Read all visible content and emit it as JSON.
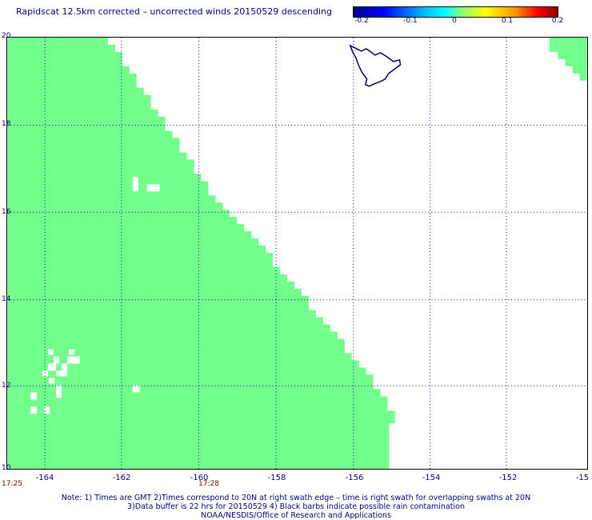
{
  "title": "Rapidscat 12.5km corrected – uncorrected winds 20150529 descending",
  "colorbar": {
    "labels": [
      "-0.2",
      "-0.1",
      "0",
      "0.1",
      "0.2"
    ]
  },
  "axes": {
    "lat_labels": [
      "20",
      "18",
      "16",
      "14",
      "12",
      "10"
    ],
    "lon_labels": [
      "-164",
      "-162",
      "-160",
      "-158",
      "-156",
      "-154",
      "-152",
      "-15"
    ]
  },
  "times": [
    "17:25",
    "17:28"
  ],
  "notes": {
    "line1": "Note: 1) Times are GMT 2)Times correspond to 20N at right swath edge – time is right swath for overlapping swaths at 20N",
    "line2": "3)Data buffer is 22 hrs for 20150529 4) Black barbs indicate possible rain contamination",
    "line3": "NOAA/NESDIS/Office of Research and Applications"
  },
  "colors": {
    "swath": "#73ff8c",
    "grid": "#0000a0",
    "coast": "#000066",
    "text": "#000080"
  }
}
